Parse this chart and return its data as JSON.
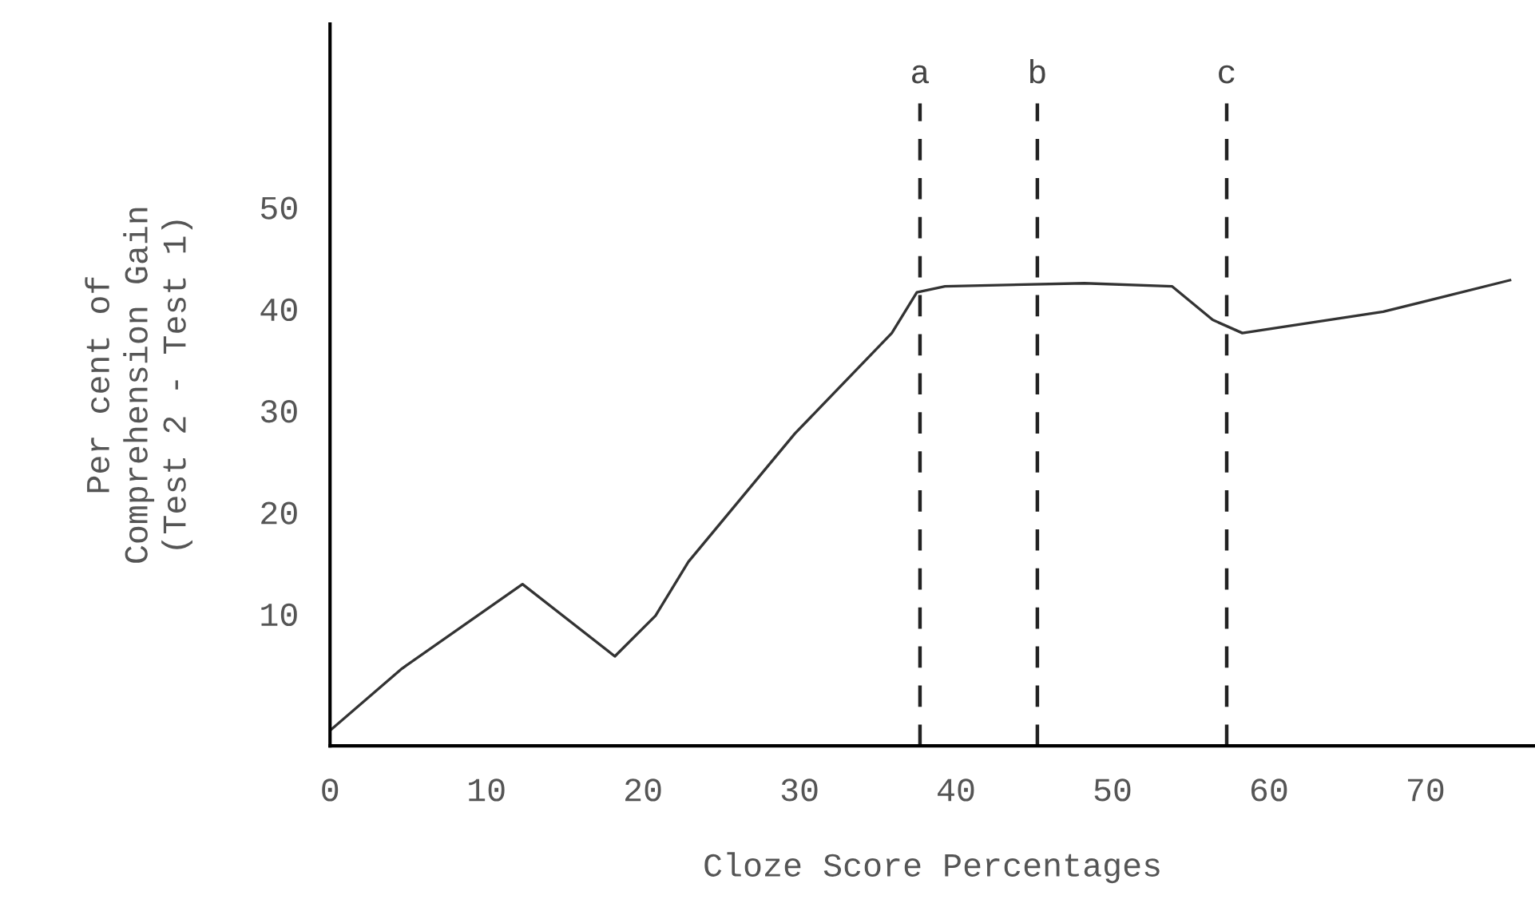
{
  "chart_data": {
    "type": "line",
    "xlabel": "Cloze Score Percentages",
    "ylabel": "Per cent of\nComprehension Gain\n(Test 2 - Test 1)",
    "x": [
      0,
      4.6,
      12.3,
      18.2,
      20.8,
      22.9,
      29.7,
      35.9,
      37.5,
      39.3,
      48.2,
      53.8,
      56.4,
      58.3,
      67.3,
      75.4
    ],
    "series": [
      {
        "color": "#333333",
        "values": [
          -1.5,
          4.6,
          12.9,
          5.8,
          9.8,
          15.1,
          27.7,
          37.6,
          41.6,
          42.2,
          42.5,
          42.2,
          38.9,
          37.6,
          39.7,
          42.8
        ]
      }
    ],
    "xlim": [
      0,
      77
    ],
    "xticks": [
      0,
      10,
      20,
      30,
      40,
      50,
      60,
      70
    ],
    "ylim": [
      -3,
      68
    ],
    "yticks": [
      10,
      20,
      30,
      40,
      50
    ],
    "ref_lines": [
      {
        "axis": "x",
        "value": 37.7,
        "label": "a",
        "line_style": "dashed",
        "color": "#222222"
      },
      {
        "axis": "x",
        "value": 45.2,
        "label": "b",
        "line_style": "dashed",
        "color": "#222222"
      },
      {
        "axis": "x",
        "value": 57.3,
        "label": "c",
        "line_style": "dashed",
        "color": "#222222"
      }
    ],
    "grid": false,
    "legend": false,
    "marker": "none",
    "line_style": "solid"
  }
}
